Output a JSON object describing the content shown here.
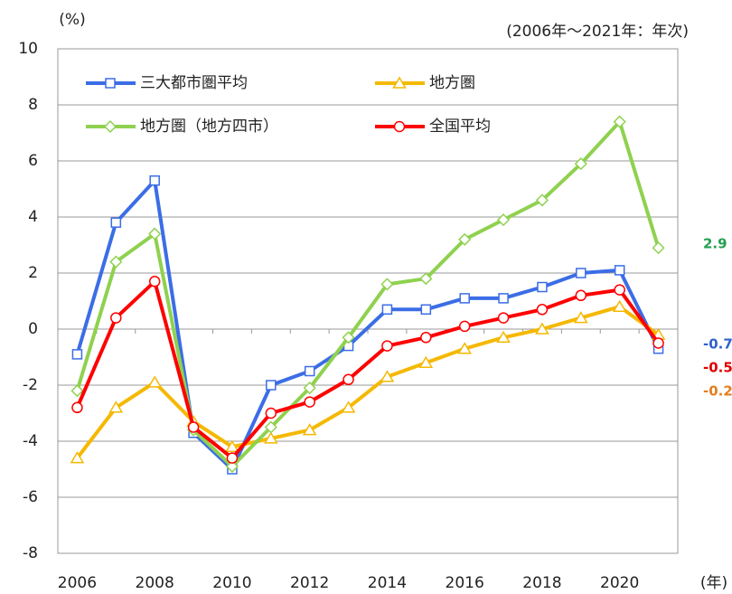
{
  "chart_data": {
    "type": "line",
    "y_unit": "(%)",
    "note": "(2006年～2021年：年次)",
    "x_unit": "(年)",
    "categories": [
      "2006",
      null,
      "2008",
      null,
      "2010",
      null,
      "2012",
      null,
      "2014",
      null,
      "2016",
      null,
      "2018",
      null,
      "2020",
      null
    ],
    "ylim": [
      -8,
      10
    ],
    "yticks": [
      -8,
      -6,
      -4,
      -2,
      0,
      2,
      4,
      6,
      8,
      10
    ],
    "grid": true,
    "series": [
      {
        "name": "三大都市圏平均",
        "color": "#3b6de6",
        "marker": "square",
        "values": [
          -0.9,
          3.8,
          5.3,
          -3.7,
          -5.0,
          -2.0,
          -1.5,
          -0.6,
          0.7,
          0.7,
          1.1,
          1.1,
          1.5,
          2.0,
          2.1,
          -0.7
        ],
        "end_label": "-0.7",
        "label_color": "#3060d0"
      },
      {
        "name": "地方圏",
        "color": "#f5b800",
        "marker": "triangle",
        "values": [
          -4.6,
          -2.8,
          -1.9,
          -3.3,
          -4.2,
          -3.9,
          -3.6,
          -2.8,
          -1.7,
          -1.2,
          -0.7,
          -0.3,
          0.0,
          0.4,
          0.8,
          -0.2
        ],
        "end_label": "-0.2",
        "label_color": "#e08020"
      },
      {
        "name": "地方圏（地方四市）",
        "color": "#8fd14f",
        "marker": "diamond",
        "values": [
          -2.2,
          2.4,
          3.4,
          -3.6,
          -4.9,
          -3.5,
          -2.1,
          -0.3,
          1.6,
          1.8,
          3.2,
          3.9,
          4.6,
          5.9,
          7.4,
          2.9
        ],
        "end_label": "2.9",
        "label_color": "#22a050"
      },
      {
        "name": "全国平均",
        "color": "#ff0000",
        "marker": "circle",
        "values": [
          -2.8,
          0.4,
          1.7,
          -3.5,
          -4.6,
          -3.0,
          -2.6,
          -1.8,
          -0.6,
          -0.3,
          0.1,
          0.4,
          0.7,
          1.2,
          1.4,
          -0.5
        ],
        "end_label": "-0.5",
        "label_color": "#e00000"
      }
    ]
  }
}
